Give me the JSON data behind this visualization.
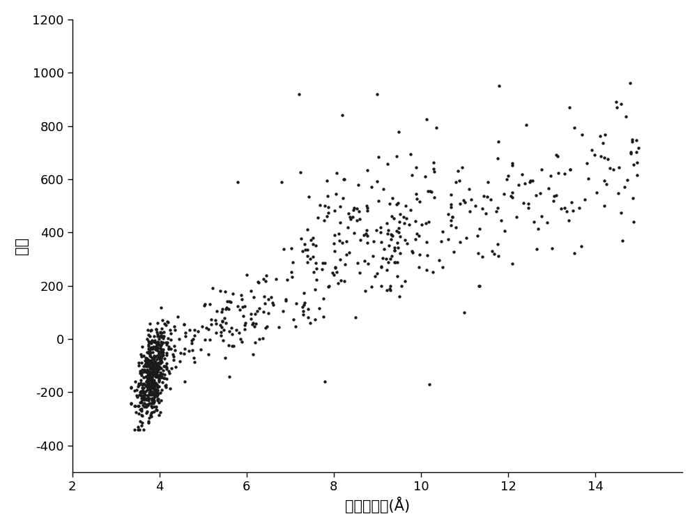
{
  "title": "",
  "xlabel": "均方根偏差(Å)",
  "ylabel": "能量",
  "xlim": [
    2,
    16
  ],
  "ylim": [
    -500,
    1200
  ],
  "xticks": [
    2,
    4,
    6,
    8,
    10,
    12,
    14
  ],
  "yticks": [
    -400,
    -200,
    0,
    200,
    400,
    600,
    800,
    1000,
    1200
  ],
  "background_color": "#ffffff",
  "dot_color": "#1a1a1a",
  "dot_size": 10,
  "xlabel_fontsize": 15,
  "ylabel_fontsize": 15,
  "tick_fontsize": 13
}
